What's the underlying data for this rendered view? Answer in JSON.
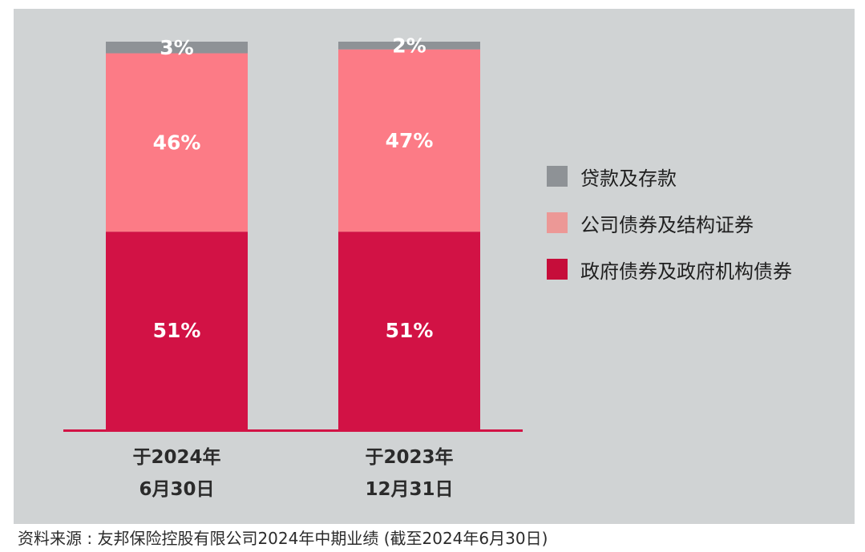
{
  "chart_data": {
    "type": "bar",
    "stacked": true,
    "categories": [
      "于2024年 6月30日",
      "于2023年 12月31日"
    ],
    "series": [
      {
        "name": "政府债券及政府机构债券",
        "values": [
          51,
          51
        ],
        "color": "#d21245"
      },
      {
        "name": "公司债券及结构证券",
        "values": [
          46,
          47
        ],
        "color": "#fc7b86"
      },
      {
        "name": "贷款及存款",
        "values": [
          3,
          2
        ],
        "color": "#8e9296"
      }
    ],
    "data_labels": [
      [
        "51%",
        "51%"
      ],
      [
        "46%",
        "47%"
      ],
      [
        "3%",
        "2%"
      ]
    ],
    "ylim": [
      0,
      100
    ],
    "grid": false,
    "legend_position": "right",
    "baseline_color": "#d21245",
    "background_color": "#d0d3d4"
  },
  "legend": [
    {
      "label": "贷款及存款",
      "color": "#8e9296"
    },
    {
      "label": "公司债券及结构证券",
      "color": "#ec9896"
    },
    {
      "label": "政府债券及政府机构债券",
      "color": "#c60d3a"
    }
  ],
  "source": "资料来源 : 友邦保险控股有限公司2024年中期业绩 (截至2024年6月30日)"
}
